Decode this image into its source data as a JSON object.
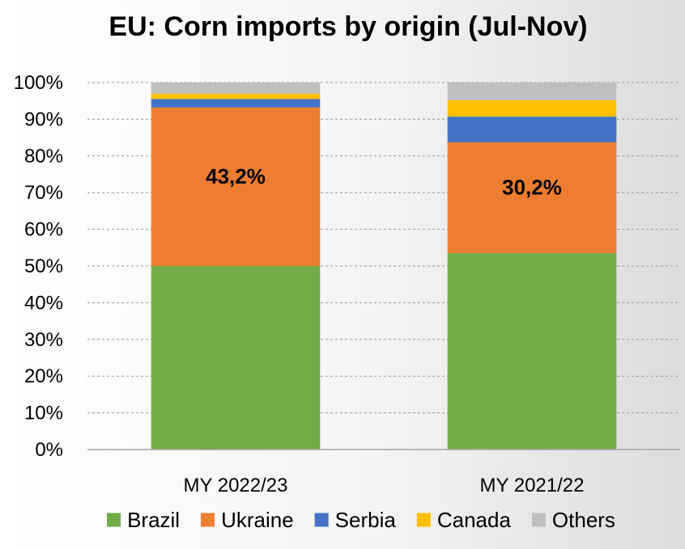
{
  "chart_data": {
    "type": "bar",
    "stacked": true,
    "title": "EU: Corn imports by origin (Jul-Nov)",
    "xlabel": "",
    "ylabel": "",
    "ylim": [
      0,
      100
    ],
    "y_ticks": [
      "0%",
      "10%",
      "20%",
      "30%",
      "40%",
      "50%",
      "60%",
      "70%",
      "80%",
      "90%",
      "100%"
    ],
    "grid": true,
    "legend_position": "bottom",
    "categories": [
      "MY 2022/23",
      "MY 2021/22"
    ],
    "series": [
      {
        "name": "Brazil",
        "color": "#70AD47",
        "values": [
          50.0,
          53.5
        ]
      },
      {
        "name": "Ukraine",
        "color": "#ED7D31",
        "values": [
          43.2,
          30.2
        ]
      },
      {
        "name": "Serbia",
        "color": "#4472C4",
        "values": [
          2.3,
          7.0
        ]
      },
      {
        "name": "Canada",
        "color": "#FFC000",
        "values": [
          1.5,
          4.5
        ]
      },
      {
        "name": "Others",
        "color": "#BFBFBF",
        "values": [
          3.0,
          4.8
        ]
      }
    ],
    "data_labels": [
      {
        "series": "Ukraine",
        "category": "MY 2022/23",
        "text": "43,2%"
      },
      {
        "series": "Ukraine",
        "category": "MY 2021/22",
        "text": "30,2%"
      }
    ]
  }
}
